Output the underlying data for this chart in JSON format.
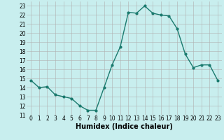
{
  "x": [
    0,
    1,
    2,
    3,
    4,
    5,
    6,
    7,
    8,
    9,
    10,
    11,
    12,
    13,
    14,
    15,
    16,
    17,
    18,
    19,
    20,
    21,
    22,
    23
  ],
  "y": [
    14.8,
    14.0,
    14.1,
    13.2,
    13.0,
    12.8,
    12.0,
    11.5,
    11.5,
    14.0,
    16.5,
    18.5,
    22.3,
    22.2,
    23.0,
    22.2,
    22.0,
    21.9,
    20.5,
    17.7,
    16.2,
    16.5,
    16.5,
    14.8
  ],
  "line_color": "#1a7a6e",
  "marker": "o",
  "marker_size": 2,
  "bg_color": "#c8eeee",
  "grid_color": "#b0b0b0",
  "xlabel": "Humidex (Indice chaleur)",
  "xlim": [
    -0.5,
    23.5
  ],
  "ylim": [
    11,
    23.5
  ],
  "yticks": [
    11,
    12,
    13,
    14,
    15,
    16,
    17,
    18,
    19,
    20,
    21,
    22,
    23
  ],
  "xticks": [
    0,
    1,
    2,
    3,
    4,
    5,
    6,
    7,
    8,
    9,
    10,
    11,
    12,
    13,
    14,
    15,
    16,
    17,
    18,
    19,
    20,
    21,
    22,
    23
  ],
  "tick_fontsize": 5.5,
  "xlabel_fontsize": 7,
  "linewidth": 1.0
}
